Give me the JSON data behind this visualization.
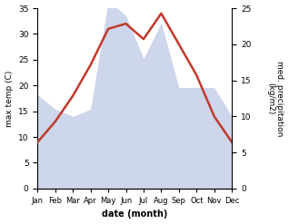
{
  "months": [
    "Jan",
    "Feb",
    "Mar",
    "Apr",
    "May",
    "Jun",
    "Jul",
    "Aug",
    "Sep",
    "Oct",
    "Nov",
    "Dec"
  ],
  "temperature": [
    9,
    13,
    18,
    24,
    31,
    32,
    29,
    34,
    28,
    22,
    14,
    9
  ],
  "precipitation": [
    13,
    11,
    10,
    11,
    26,
    24,
    18,
    23,
    14,
    14,
    14,
    10
  ],
  "temp_color": "#c0392b",
  "precip_color": "#c5cfe8",
  "ylim_temp": [
    0,
    35
  ],
  "ylim_precip": [
    0,
    25
  ],
  "yticks_temp": [
    0,
    5,
    10,
    15,
    20,
    25,
    30,
    35
  ],
  "yticks_precip": [
    0,
    5,
    10,
    15,
    20,
    25
  ],
  "ylabel_left": "max temp (C)",
  "ylabel_right": "med. precipitation\n(kg/m2)",
  "xlabel": "date (month)",
  "background_color": "#ffffff",
  "line_width": 1.8
}
